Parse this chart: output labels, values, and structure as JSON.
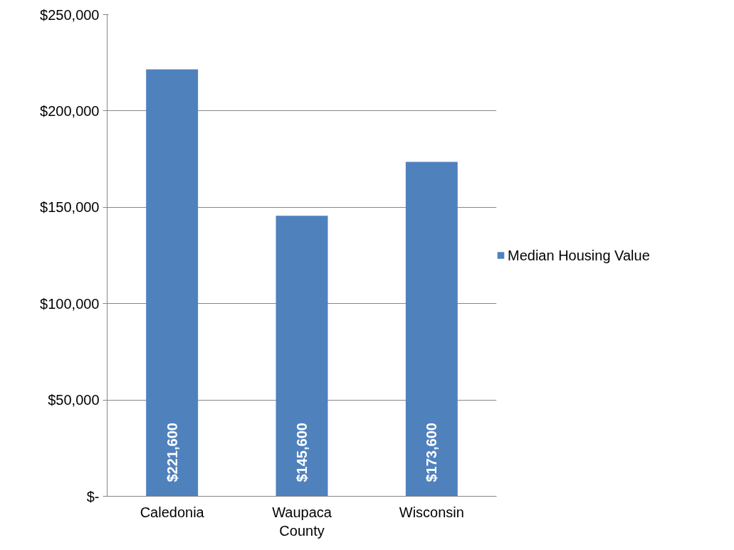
{
  "chart_data": {
    "type": "bar",
    "categories": [
      "Caledonia",
      "Waupaca County",
      "Wisconsin"
    ],
    "series": [
      {
        "name": "Median Housing Value",
        "color": "#4f81bd",
        "values": [
          221600,
          145600,
          173600
        ]
      }
    ],
    "value_labels": [
      "$221,600",
      "$145,600",
      "$173,600"
    ],
    "ylim": [
      0,
      250000
    ],
    "yticks": [
      {
        "value": 0,
        "label": "$-"
      },
      {
        "value": 50000,
        "label": "$50,000"
      },
      {
        "value": 100000,
        "label": "$100,000"
      },
      {
        "value": 150000,
        "label": "$150,000"
      },
      {
        "value": 200000,
        "label": "$200,000"
      },
      {
        "value": 250000,
        "label": "$250,000"
      }
    ],
    "grid": "y",
    "legend": "right"
  }
}
